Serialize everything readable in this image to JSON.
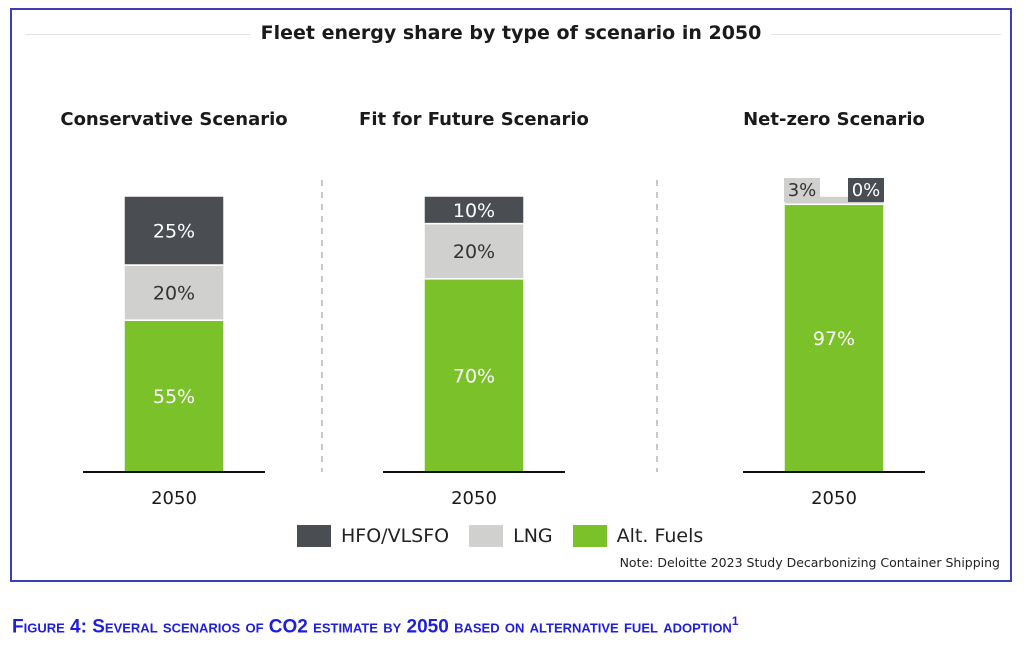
{
  "chart_data": {
    "type": "bar",
    "stacked": true,
    "title": "Fleet energy share by type of scenario in 2050",
    "panels": [
      {
        "title": "Conservative Scenario",
        "category": "2050",
        "segments": [
          {
            "series": "Alt. Fuels",
            "value": 55,
            "label": "55%"
          },
          {
            "series": "LNG",
            "value": 20,
            "label": "20%"
          },
          {
            "series": "HFO/VLSFO",
            "value": 25,
            "label": "25%"
          }
        ]
      },
      {
        "title": "Fit for Future Scenario",
        "category": "2050",
        "segments": [
          {
            "series": "Alt. Fuels",
            "value": 70,
            "label": "70%"
          },
          {
            "series": "LNG",
            "value": 20,
            "label": "20%"
          },
          {
            "series": "HFO/VLSFO",
            "value": 10,
            "label": "10%"
          }
        ]
      },
      {
        "title": "Net-zero Scenario",
        "category": "2050",
        "segments": [
          {
            "series": "Alt. Fuels",
            "value": 97,
            "label": "97%"
          },
          {
            "series": "LNG",
            "value": 3,
            "label": "3%"
          },
          {
            "series": "HFO/VLSFO",
            "value": 0,
            "label": "0%"
          }
        ]
      }
    ],
    "series": [
      {
        "name": "HFO/VLSFO",
        "color": "#4a4d52"
      },
      {
        "name": "LNG",
        "color": "#d0d0ce"
      },
      {
        "name": "Alt. Fuels",
        "color": "#7ac12a"
      }
    ],
    "ylim": [
      0,
      100
    ],
    "grid": false,
    "legend_position": "bottom"
  },
  "note": "Note: Deloitte 2023 Study Decarbonizing Container Shipping",
  "caption": {
    "text": "Figure 4: Several scenarios of CO2 estimate by 2050 based on alternative fuel adoption",
    "superscript": "1"
  }
}
